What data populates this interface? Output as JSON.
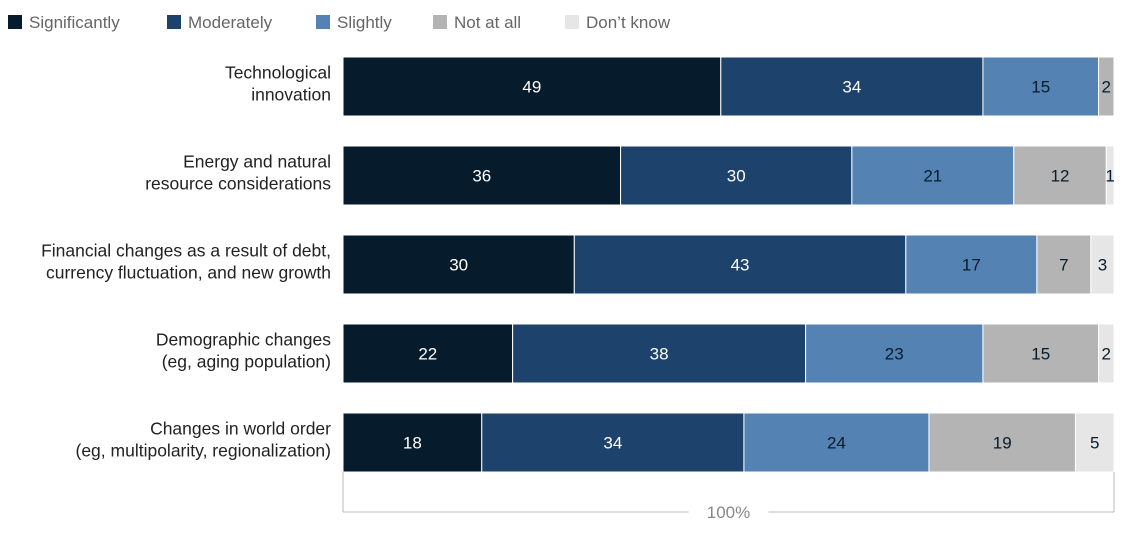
{
  "chart_data": {
    "type": "bar",
    "orientation": "horizontal",
    "stacked": true,
    "categories": [
      [
        "Technological",
        "innovation"
      ],
      [
        "Energy and natural",
        "resource considerations"
      ],
      [
        "Financial changes as a result of debt,",
        "currency fluctuation, and new growth"
      ],
      [
        "Demographic changes",
        "(eg, aging population)"
      ],
      [
        "Changes in world order",
        "(eg, multipolarity, regionalization)"
      ]
    ],
    "series": [
      {
        "name": "Significantly",
        "color": "#061c2c",
        "label_color": "#ffffff",
        "values": [
          49,
          36,
          30,
          22,
          18
        ]
      },
      {
        "name": "Moderately",
        "color": "#1d426b",
        "label_color": "#ffffff",
        "values": [
          34,
          30,
          43,
          38,
          34
        ]
      },
      {
        "name": "Slightly",
        "color": "#5482b3",
        "label_color": "#061c2c",
        "values": [
          15,
          21,
          17,
          23,
          24
        ]
      },
      {
        "name": "Not at all",
        "color": "#b4b4b4",
        "label_color": "#061c2c",
        "values": [
          2,
          12,
          7,
          15,
          19
        ]
      },
      {
        "name": "Don’t know",
        "color": "#e6e6e6",
        "label_color": "#061c2c",
        "values": [
          0,
          1,
          3,
          2,
          5
        ]
      }
    ],
    "total_label": "100%",
    "legend_position": "top-left",
    "xlim": [
      0,
      100
    ]
  }
}
